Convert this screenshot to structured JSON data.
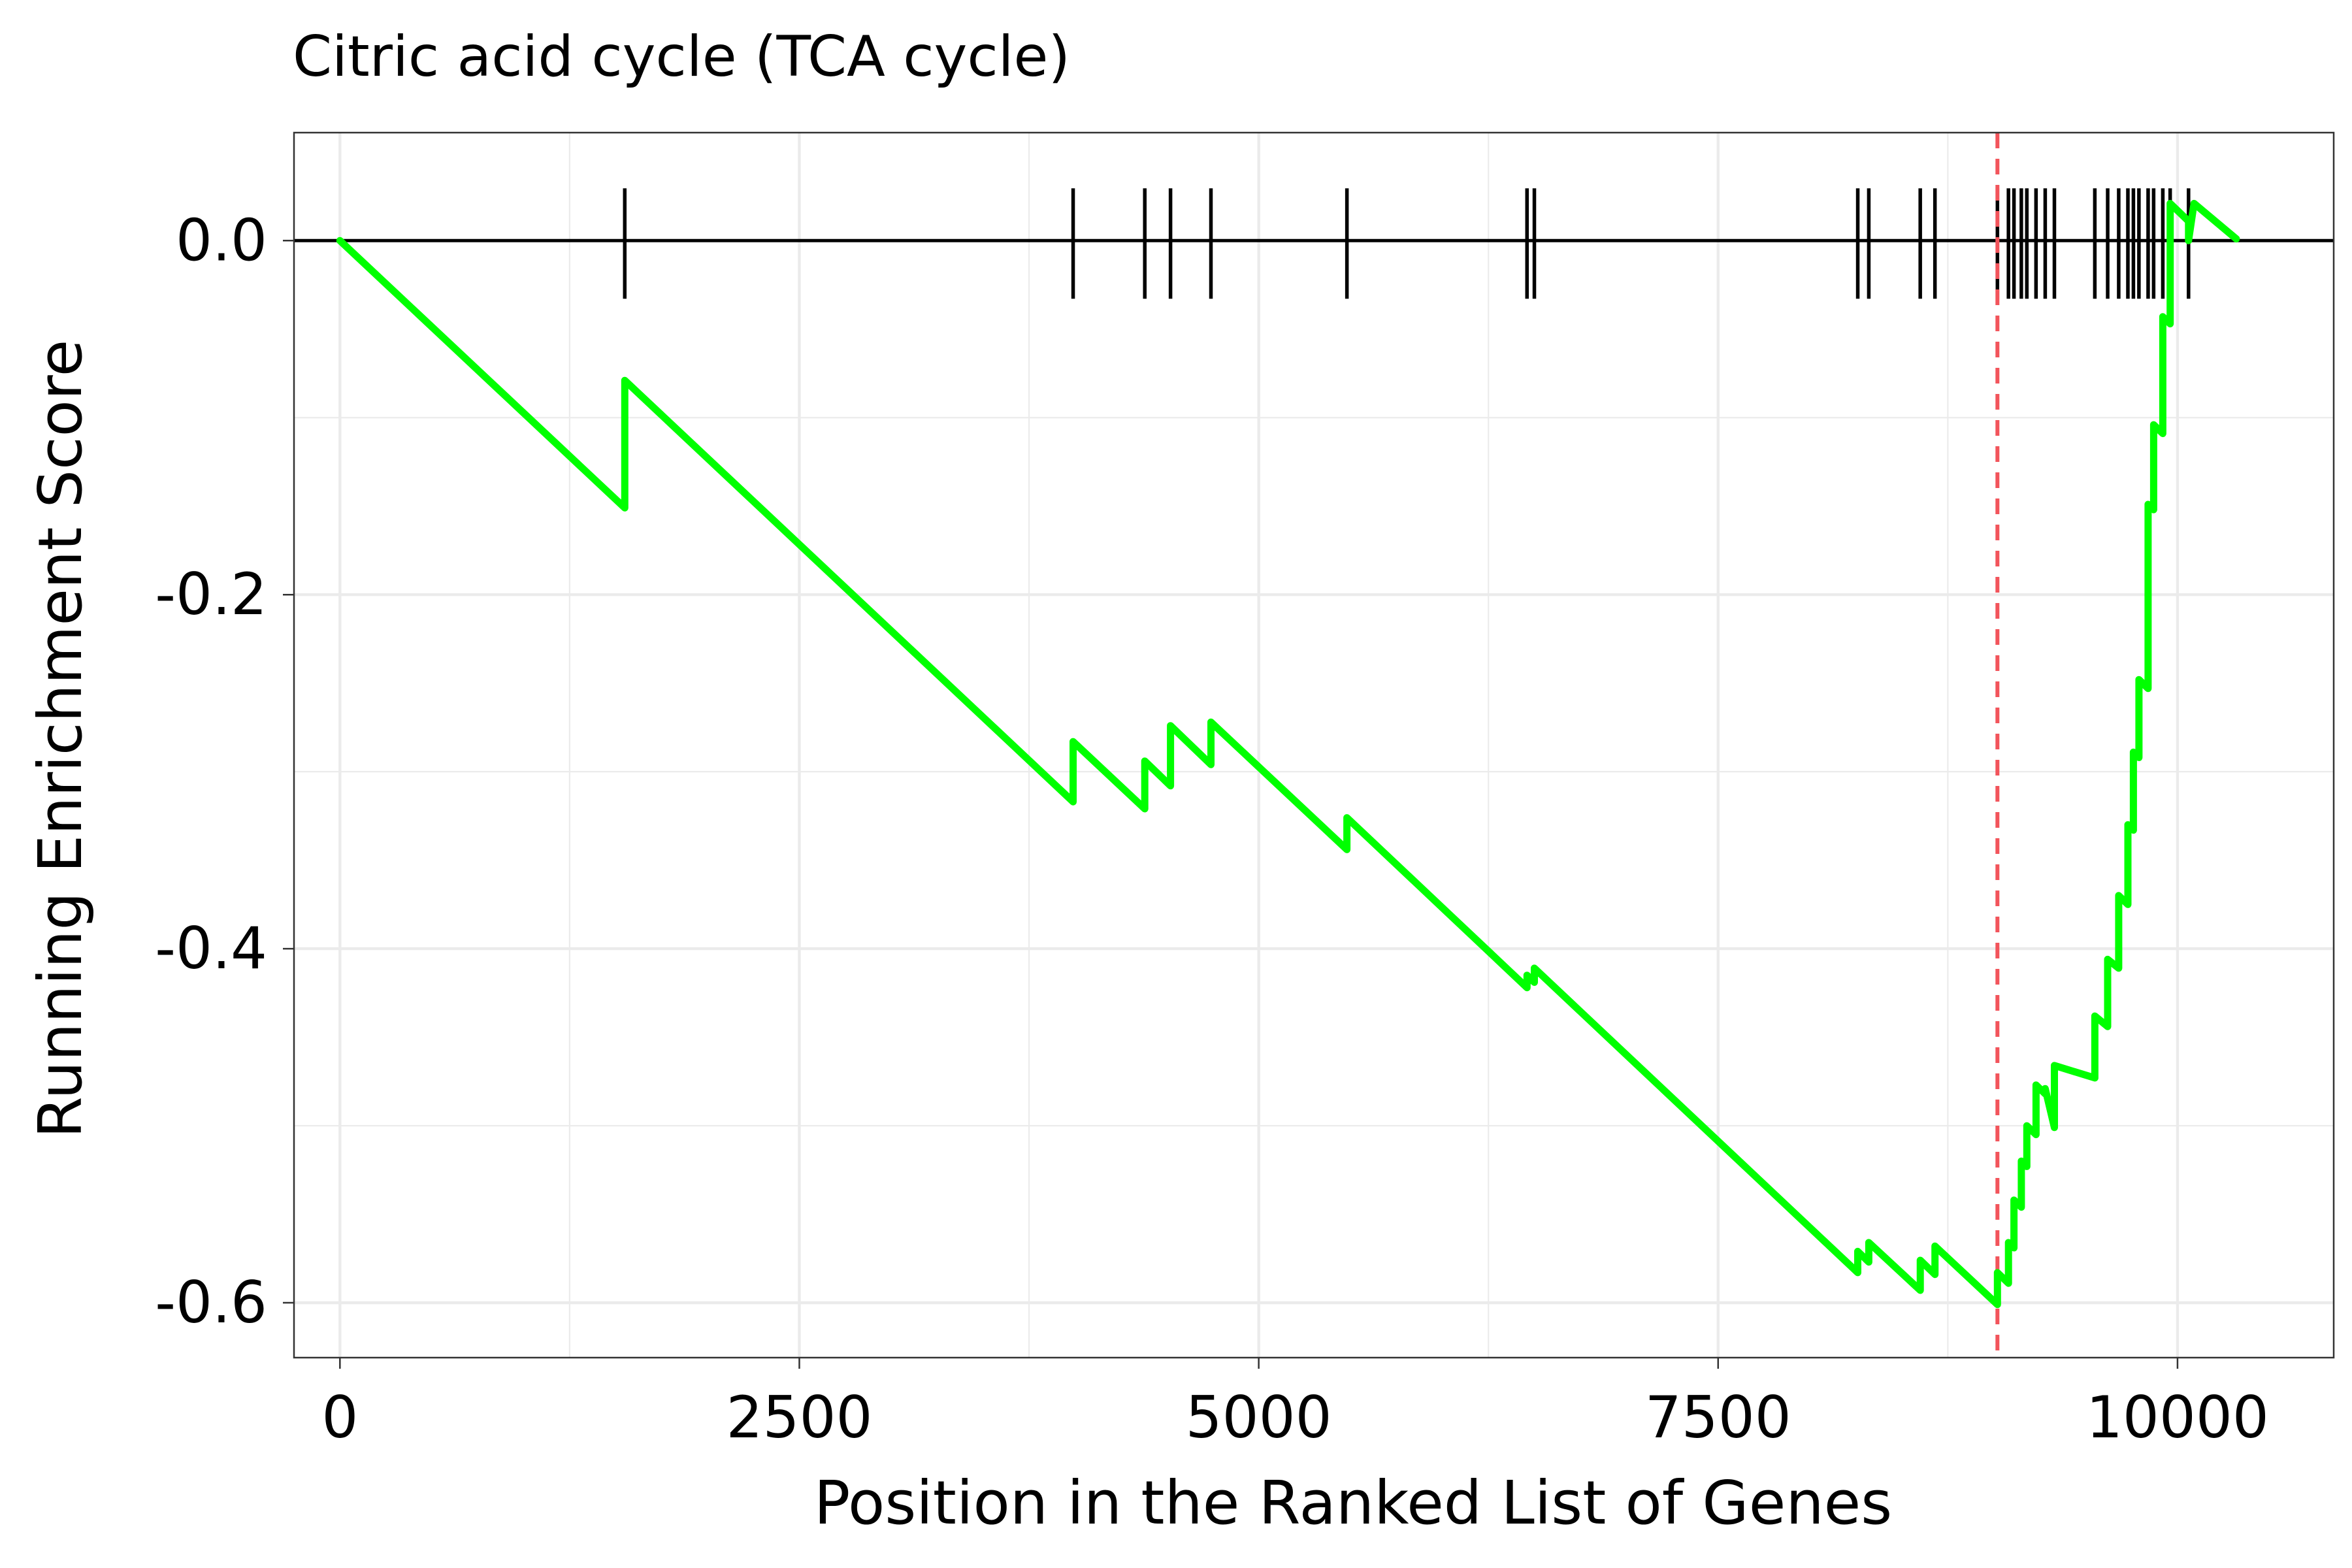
{
  "chart_data": {
    "type": "line",
    "title": "Citric acid cycle (TCA cycle)",
    "xlabel": "Position in the Ranked List of Genes",
    "ylabel": "Running Enrichment Score",
    "xlim": [
      -250,
      10850
    ],
    "ylim": [
      -0.631,
      0.061
    ],
    "x_ticks": [
      0,
      2500,
      5000,
      7500,
      10000
    ],
    "x_tick_labels": [
      "0",
      "2500",
      "5000",
      "7500",
      "10000"
    ],
    "y_ticks": [
      0.0,
      -0.2,
      -0.4,
      -0.6
    ],
    "y_tick_labels": [
      "0.0",
      "-0.2",
      "-0.4",
      "-0.6"
    ],
    "grid": true,
    "hit_positions": [
      1550,
      3990,
      4380,
      4520,
      4740,
      5480,
      6460,
      6500,
      8260,
      8320,
      8600,
      8680,
      9020,
      9080,
      9110,
      9150,
      9180,
      9230,
      9280,
      9330,
      9550,
      9620,
      9680,
      9730,
      9760,
      9790,
      9840,
      9870,
      9920,
      9960,
      10060
    ],
    "leading_edge_position": 9020,
    "series": [
      {
        "color": "#00FF00",
        "x": [
          0,
          1550,
          1550,
          3990,
          3990,
          4380,
          4380,
          4520,
          4520,
          4740,
          4740,
          5480,
          5480,
          6460,
          6460,
          6500,
          6500,
          8260,
          8260,
          8320,
          8320,
          8600,
          8600,
          8680,
          8680,
          9020,
          9020,
          9080,
          9080,
          9110,
          9110,
          9150,
          9150,
          9180,
          9180,
          9230,
          9230,
          9280,
          9280,
          9330,
          9330,
          9550,
          9550,
          9620,
          9620,
          9680,
          9680,
          9730,
          9730,
          9760,
          9760,
          9790,
          9790,
          9840,
          9840,
          9870,
          9870,
          9920,
          9920,
          9960,
          9960,
          10060,
          10060,
          10090,
          10090,
          10320
        ],
        "y": [
          0.0,
          -0.151,
          -0.079,
          -0.317,
          -0.283,
          -0.321,
          -0.294,
          -0.308,
          -0.274,
          -0.296,
          -0.272,
          -0.344,
          -0.326,
          -0.422,
          -0.415,
          -0.419,
          -0.411,
          -0.583,
          -0.571,
          -0.577,
          -0.566,
          -0.593,
          -0.576,
          -0.584,
          -0.568,
          -0.601,
          -0.583,
          -0.589,
          -0.566,
          -0.569,
          -0.542,
          -0.546,
          -0.52,
          -0.523,
          -0.5,
          -0.505,
          -0.477,
          -0.482,
          -0.479,
          -0.501,
          -0.466,
          -0.473,
          -0.438,
          -0.444,
          -0.406,
          -0.411,
          -0.37,
          -0.375,
          -0.33,
          -0.333,
          -0.289,
          -0.292,
          -0.248,
          -0.253,
          -0.149,
          -0.152,
          -0.104,
          -0.109,
          -0.043,
          -0.047,
          0.021,
          0.011,
          0.0,
          0.021,
          0.021,
          0.001
        ]
      }
    ]
  }
}
